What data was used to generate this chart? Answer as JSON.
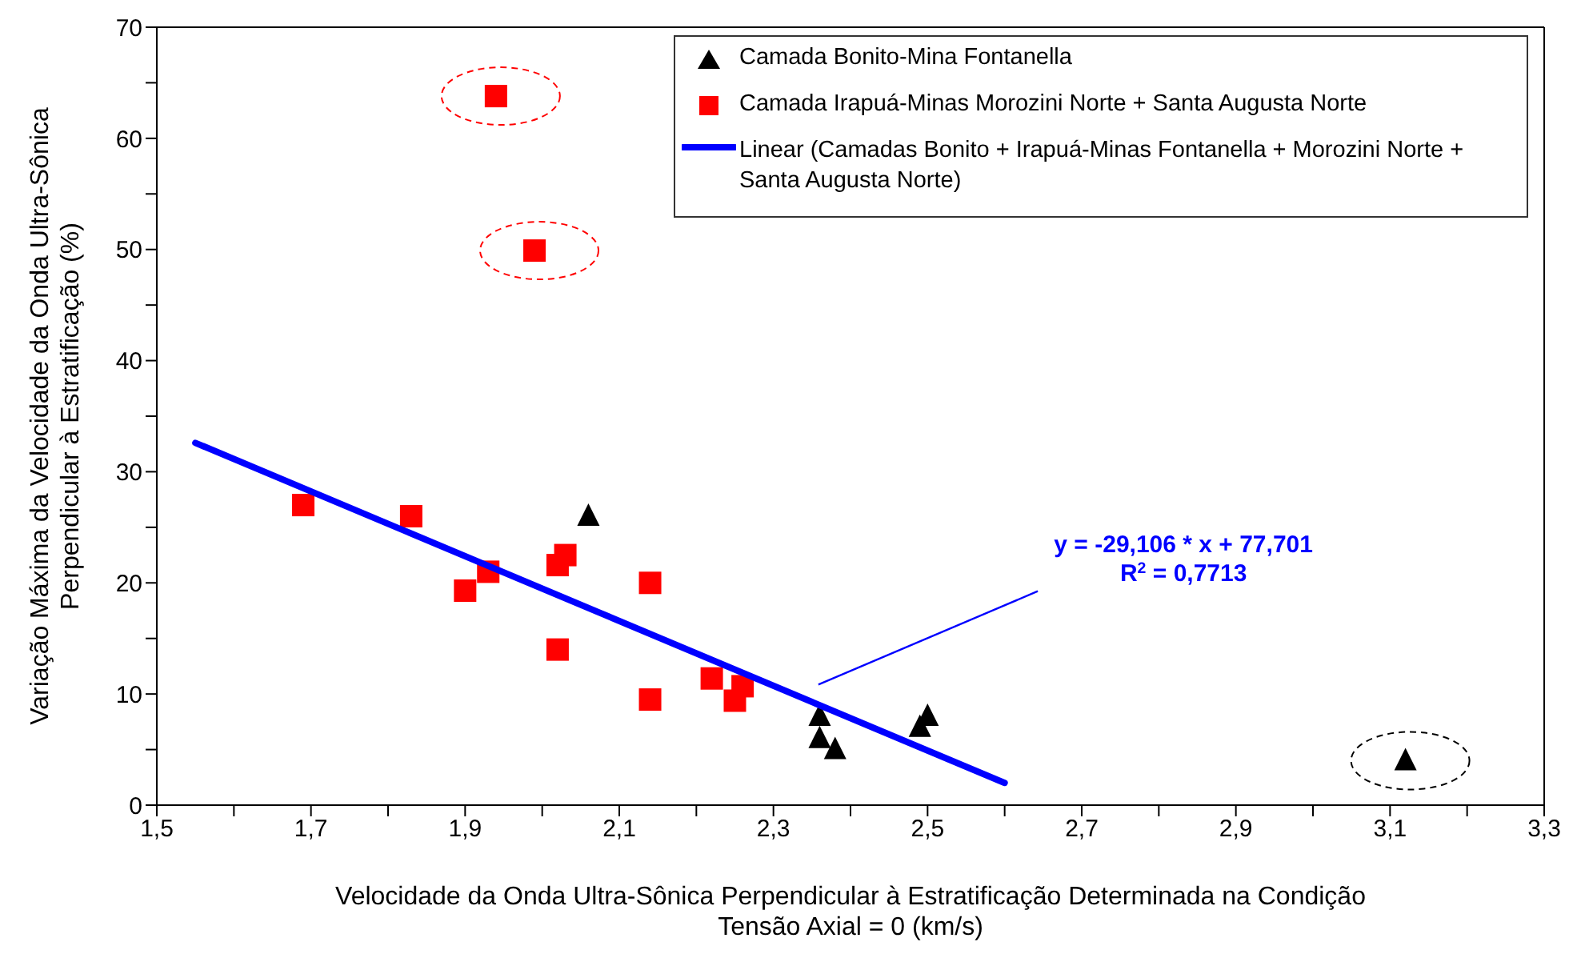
{
  "chart_data": {
    "type": "scatter",
    "xlabel": "Velocidade da Onda Ultra-Sônica Perpendicular à Estratificação Determinada na Condição\nTensão Axial = 0 (km/s)",
    "ylabel": "Variação Máxima da Velocidade da Onda Ultra-Sônica\nPerpendicular à Estratificação (%)",
    "series": [
      {
        "name": "Camada Bonito-Mina Fontanella",
        "color": "#000000",
        "marker": "triangle",
        "x": [
          2.06,
          2.36,
          2.36,
          2.38,
          2.49,
          2.5,
          3.12
        ],
        "values": [
          26,
          8,
          6,
          5,
          7,
          8,
          4
        ]
      },
      {
        "name": "Camada Irapuá-Minas Morozini Norte + Santa Augusta Norte",
        "color": "#ff0000",
        "marker": "square",
        "x": [
          1.69,
          1.83,
          1.9,
          1.93,
          2.02,
          2.03,
          2.14,
          2.02,
          2.14,
          2.22,
          2.25,
          2.26,
          1.94,
          1.99
        ],
        "values": [
          27,
          26,
          19.3,
          21,
          21.6,
          22.5,
          20,
          14,
          9.5,
          11.4,
          9.4,
          10.7,
          63.8,
          49.9
        ]
      },
      {
        "name": "Linear (Camadas Bonito + Irapuá-Minas Fontanella + Morozini Norte + Santa Augusta Norte)",
        "type": "line",
        "color": "#0000ff",
        "x": [
          1.55,
          2.6
        ],
        "values": [
          32.6,
          2.0
        ]
      }
    ],
    "annotations": [
      "y = -29,106 * x + 77,701\nR$^{2}$ = 0,7713"
    ],
    "xlim": [
      1.5,
      3.3
    ],
    "xticks": [
      {
        "value": 1.5,
        "label": "1,5"
      },
      {
        "value": 1.6,
        "label": null
      },
      {
        "value": 1.7,
        "label": "1,7"
      },
      {
        "value": 1.8,
        "label": null
      },
      {
        "value": 1.9,
        "label": "1,9"
      },
      {
        "value": 2.0,
        "label": null
      },
      {
        "value": 2.1,
        "label": "2,1"
      },
      {
        "value": 2.2,
        "label": null
      },
      {
        "value": 2.3,
        "label": "2,3"
      },
      {
        "value": 2.4,
        "label": null
      },
      {
        "value": 2.5,
        "label": "2,5"
      },
      {
        "value": 2.6,
        "label": null
      },
      {
        "value": 2.7,
        "label": "2,7"
      },
      {
        "value": 2.8,
        "label": null
      },
      {
        "value": 2.9,
        "label": "2,9"
      },
      {
        "value": 3.0,
        "label": null
      },
      {
        "value": 3.1,
        "label": "3,1"
      },
      {
        "value": 3.2,
        "label": null
      },
      {
        "value": 3.3,
        "label": "3,3"
      }
    ],
    "ylim": [
      0,
      70
    ],
    "yticks": [
      0,
      {
        "value": 5,
        "label": null
      },
      10,
      {
        "value": 15,
        "label": null
      },
      20,
      {
        "value": 25,
        "label": null
      },
      30,
      {
        "value": 35,
        "label": null
      },
      40,
      {
        "value": 45,
        "label": null
      },
      50,
      {
        "value": 55,
        "label": null
      },
      60,
      {
        "value": 65,
        "label": null
      },
      70
    ],
    "grid": false,
    "legend": "top right"
  }
}
